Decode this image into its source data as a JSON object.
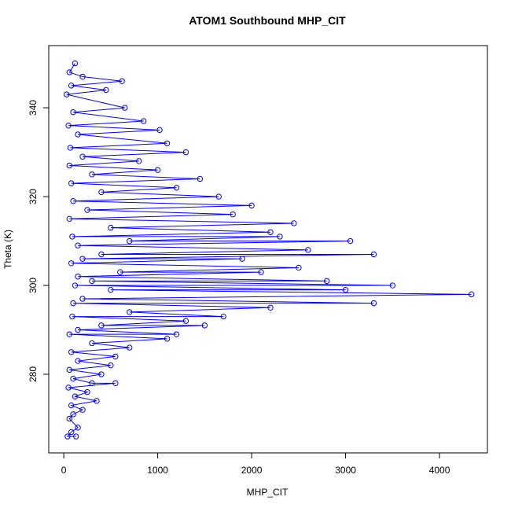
{
  "chart_data": {
    "type": "line",
    "title": "ATOM1 Southbound MHP_CIT",
    "x_label": "MHP_CIT",
    "y_label": "Theta (K)",
    "marker": "open-circle",
    "xlim": [
      -160,
      4510
    ],
    "ylim": [
      262.3,
      354
    ],
    "xticks": [
      0,
      1000,
      2000,
      3000,
      4000
    ],
    "yticks": [
      280,
      300,
      320,
      340
    ],
    "series": [
      {
        "color": "#0000ff",
        "x": [
          120,
          60,
          200,
          620,
          80,
          450,
          30,
          650,
          100,
          850,
          50,
          1020,
          150,
          1100,
          70,
          1300,
          200,
          800,
          60,
          1000,
          300,
          1450,
          80,
          1200,
          400,
          1650,
          100,
          2000,
          250,
          1800,
          60,
          2450,
          500,
          2200,
          90,
          2300,
          700,
          3050,
          150,
          2600,
          400,
          3300,
          200,
          1900,
          80,
          2500,
          600,
          2100,
          150,
          2800,
          300,
          3500,
          120,
          3000,
          500,
          4340,
          200,
          3300,
          100,
          2200,
          700,
          1700,
          90,
          1300,
          400,
          1500,
          150,
          1200,
          60,
          1100,
          300,
          700,
          80,
          550,
          150,
          500,
          60,
          400,
          100,
          300,
          550,
          50,
          250,
          120,
          350,
          80,
          200,
          100,
          60,
          150,
          80,
          40,
          130
        ],
        "values": [
          350,
          348,
          347,
          346,
          345,
          344,
          343,
          340,
          339,
          337,
          336,
          335,
          334,
          332,
          331,
          330,
          329,
          328,
          327,
          326,
          325,
          324,
          323,
          322,
          321,
          320,
          319,
          318,
          317,
          316,
          315,
          314,
          313,
          312,
          311,
          311,
          310,
          310,
          309,
          308,
          307,
          307,
          306,
          306,
          305,
          304,
          303,
          303,
          302,
          301,
          301,
          300,
          300,
          299,
          299,
          298,
          297,
          296,
          296,
          295,
          294,
          293,
          293,
          292,
          291,
          291,
          290,
          289,
          289,
          288,
          287,
          286,
          285,
          284,
          283,
          282,
          281,
          280,
          279,
          278,
          278,
          277,
          276,
          275,
          274,
          273,
          272,
          271,
          270,
          268,
          267,
          266,
          266
        ]
      }
    ]
  }
}
